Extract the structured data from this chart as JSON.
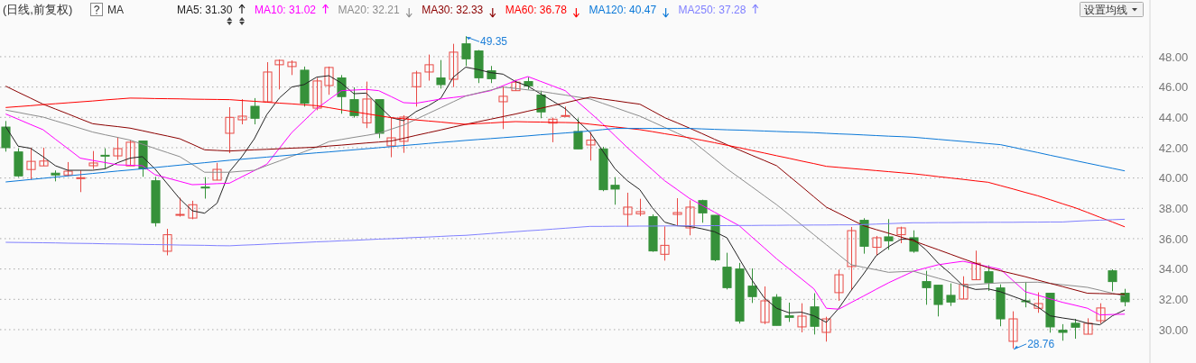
{
  "chart_data": {
    "type": "candlestick",
    "title": "(日线,前复权)",
    "legend_title": "MA",
    "legend": "top left",
    "grid": "y",
    "categories": [
      null,
      null,
      null,
      null,
      null,
      null,
      null,
      null,
      null,
      null,
      null,
      null,
      null,
      null,
      null,
      null,
      null,
      null,
      null,
      null,
      null,
      null,
      null,
      null,
      null,
      null,
      null,
      null,
      null,
      null,
      null,
      null,
      null,
      null,
      null,
      null,
      null,
      null,
      null,
      null,
      null,
      null,
      null,
      null,
      null,
      null,
      null,
      null,
      null,
      null,
      null,
      null,
      null,
      null,
      null,
      null,
      null,
      null,
      null,
      null,
      null,
      null,
      null,
      null,
      null,
      null,
      null,
      null,
      null,
      null,
      null,
      null,
      null,
      null,
      null,
      null,
      null,
      null,
      null,
      null,
      null,
      null,
      null,
      null,
      null,
      null,
      null,
      null,
      null,
      null,
      null
    ],
    "ylim": [
      27.8,
      51.74
    ],
    "yticks": [
      {
        "value": 30,
        "label": "30.00"
      },
      {
        "value": 32,
        "label": "32.00"
      },
      {
        "value": 34,
        "label": "34.00"
      },
      {
        "value": 36,
        "label": "36.00"
      },
      {
        "value": 38,
        "label": "38.00"
      },
      {
        "value": 40,
        "label": "40.00"
      },
      {
        "value": 42,
        "label": "42.00"
      },
      {
        "value": 44,
        "label": "44.00"
      },
      {
        "value": 46,
        "label": "46.00"
      },
      {
        "value": 48,
        "label": "48.00"
      }
    ],
    "annotations": [
      "设置均线",
      "49.35",
      "28.76"
    ],
    "series": [
      {
        "ohlc": [
          [
            43.36,
            43.76,
            41.74,
            42.0
          ],
          [
            41.72,
            41.96,
            40.06,
            40.14
          ],
          [
            40.56,
            42.0,
            39.9,
            41.1
          ],
          [
            40.8,
            42.0,
            40.8,
            41.12
          ],
          [
            40.32,
            40.5,
            39.78,
            40.2
          ],
          [
            40.2,
            41.05,
            40.1,
            40.45
          ],
          [
            40.0,
            40.5,
            39.07,
            40.02
          ],
          [
            40.81,
            41.78,
            40.6,
            40.99
          ],
          [
            41.5,
            41.96,
            40.6,
            41.44
          ],
          [
            41.46,
            42.7,
            41.2,
            41.94
          ],
          [
            40.8,
            42.5,
            40.8,
            42.36
          ],
          [
            42.44,
            42.44,
            40.08,
            40.6
          ],
          [
            39.82,
            40.08,
            36.8,
            37.05
          ],
          [
            35.17,
            36.65,
            34.9,
            36.26
          ],
          [
            37.56,
            38.7,
            37.45,
            37.6
          ],
          [
            37.36,
            38.5,
            37.28,
            38.24
          ],
          [
            39.4,
            40.06,
            38.64,
            39.36
          ],
          [
            39.86,
            41.0,
            39.86,
            40.57
          ],
          [
            42.95,
            44.67,
            41.64,
            44.0
          ],
          [
            43.84,
            45.2,
            43.54,
            44.08
          ],
          [
            44.73,
            45.27,
            43.54,
            43.94
          ],
          [
            45.03,
            47.64,
            45.03,
            46.99
          ],
          [
            47.47,
            47.82,
            45.84,
            47.76
          ],
          [
            47.35,
            47.76,
            46.79,
            47.64
          ],
          [
            47.11,
            47.35,
            44.71,
            44.93
          ],
          [
            44.61,
            46.6,
            44.47,
            46.4
          ],
          [
            46.1,
            47.35,
            45.49,
            47.29
          ],
          [
            46.6,
            46.79,
            44.24,
            45.37
          ],
          [
            45.17,
            45.98,
            43.98,
            44.12
          ],
          [
            43.64,
            46.36,
            43.29,
            45.21
          ],
          [
            45.17,
            45.17,
            42.63,
            42.95
          ],
          [
            42.12,
            43.98,
            41.37,
            42.65
          ],
          [
            42.42,
            44.14,
            41.66,
            44.02
          ],
          [
            46.02,
            47.07,
            44.71,
            46.93
          ],
          [
            46.99,
            48.14,
            46.42,
            47.47
          ],
          [
            46.6,
            47.78,
            45.9,
            46.16
          ],
          [
            46.51,
            48.85,
            46.0,
            48.3
          ],
          [
            48.85,
            49.35,
            47.39,
            47.86
          ],
          [
            48.38,
            48.44,
            46.26,
            46.61
          ],
          [
            47.07,
            47.39,
            46.26,
            46.55
          ],
          [
            45.03,
            46.06,
            43.23,
            45.39
          ],
          [
            45.76,
            46.48,
            45.76,
            46.32
          ],
          [
            46.36,
            46.65,
            45.84,
            46.08
          ],
          [
            45.47,
            45.76,
            43.94,
            44.36
          ],
          [
            43.62,
            43.98,
            42.36,
            43.88
          ],
          [
            44.06,
            44.71,
            44.06,
            44.12
          ],
          [
            43.07,
            43.94,
            41.92,
            41.92
          ],
          [
            42.18,
            43.03,
            41.15,
            42.5
          ],
          [
            41.92,
            42.06,
            39.13,
            39.23
          ],
          [
            39.52,
            40.06,
            38.24,
            39.27
          ],
          [
            37.6,
            39.03,
            36.79,
            38.08
          ],
          [
            37.64,
            38.63,
            37.49,
            37.78
          ],
          [
            37.45,
            37.6,
            35.13,
            35.19
          ],
          [
            34.97,
            36.81,
            34.55,
            35.56
          ],
          [
            37.6,
            38.67,
            36.85,
            37.72
          ],
          [
            36.71,
            38.53,
            36.22,
            38.08
          ],
          [
            38.51,
            38.57,
            37.05,
            37.7
          ],
          [
            37.54,
            37.54,
            34.51,
            34.61
          ],
          [
            34.12,
            35.07,
            32.65,
            32.77
          ],
          [
            34.0,
            34.4,
            30.4,
            30.57
          ],
          [
            32.87,
            34.04,
            31.76,
            32.18
          ],
          [
            30.48,
            32.85,
            30.36,
            31.9
          ],
          [
            32.14,
            32.34,
            30.28,
            30.28
          ],
          [
            30.91,
            31.78,
            30.51,
            30.81
          ],
          [
            30.18,
            31.74,
            29.82,
            30.89
          ],
          [
            31.5,
            32.4,
            29.68,
            30.22
          ],
          [
            29.82,
            30.85,
            29.21,
            30.71
          ],
          [
            32.44,
            33.96,
            31.9,
            33.62
          ],
          [
            34.16,
            36.77,
            32.59,
            36.53
          ],
          [
            37.21,
            37.35,
            35.01,
            35.5
          ],
          [
            35.43,
            36.18,
            34.87,
            36.06
          ],
          [
            36.12,
            37.29,
            35.27,
            35.86
          ],
          [
            36.26,
            36.79,
            35.7,
            36.71
          ],
          [
            36.06,
            36.55,
            35.07,
            35.17
          ],
          [
            33.17,
            33.88,
            31.64,
            32.77
          ],
          [
            32.93,
            32.93,
            30.87,
            31.66
          ],
          [
            32.26,
            33.05,
            31.56,
            31.82
          ],
          [
            32.02,
            33.52,
            32.02,
            32.99
          ],
          [
            33.29,
            35.21,
            33.29,
            34.38
          ],
          [
            33.82,
            34.24,
            32.55,
            33.09
          ],
          [
            32.75,
            32.99,
            30.22,
            30.71
          ],
          [
            29.23,
            31.21,
            28.76,
            30.71
          ],
          [
            31.9,
            33.15,
            31.47,
            31.84
          ],
          [
            31.41,
            32.46,
            31.11,
            31.72
          ],
          [
            32.4,
            32.4,
            29.8,
            30.18
          ],
          [
            29.96,
            30.36,
            29.27,
            29.82
          ],
          [
            30.42,
            30.71,
            29.4,
            30.16
          ],
          [
            29.7,
            30.75,
            29.7,
            30.42
          ],
          [
            30.59,
            31.74,
            30.4,
            31.43
          ],
          [
            33.88,
            33.98,
            32.53,
            33.17
          ],
          [
            32.4,
            32.69,
            31.54,
            31.84
          ]
        ],
        "colors": [
          "#36913a",
          "#36913a",
          "#e84a45",
          "#e84a45",
          "#36913a",
          "#e84a45",
          "#e84a45",
          "#e84a45",
          "#36913a",
          "#e84a45",
          "#e84a45",
          "#36913a",
          "#36913a",
          "#e84a45",
          "#e84a45",
          "#e84a45",
          "#36913a",
          "#e84a45",
          "#e84a45",
          "#e84a45",
          "#36913a",
          "#e84a45",
          "#e84a45",
          "#e84a45",
          "#36913a",
          "#e84a45",
          "#e84a45",
          "#36913a",
          "#36913a",
          "#e84a45",
          "#36913a",
          "#e84a45",
          "#e84a45",
          "#e84a45",
          "#e84a45",
          "#36913a",
          "#e84a45",
          "#36913a",
          "#36913a",
          "#36913a",
          "#e84a45",
          "#e84a45",
          "#36913a",
          "#36913a",
          "#e84a45",
          "#e84a45",
          "#36913a",
          "#e84a45",
          "#36913a",
          "#36913a",
          "#e84a45",
          "#e84a45",
          "#36913a",
          "#e84a45",
          "#e84a45",
          "#e84a45",
          "#36913a",
          "#36913a",
          "#36913a",
          "#36913a",
          "#36913a",
          "#e84a45",
          "#36913a",
          "#36913a",
          "#e84a45",
          "#36913a",
          "#e84a45",
          "#e84a45",
          "#e84a45",
          "#36913a",
          "#e84a45",
          "#36913a",
          "#e84a45",
          "#36913a",
          "#36913a",
          "#36913a",
          "#36913a",
          "#e84a45",
          "#e84a45",
          "#36913a",
          "#36913a",
          "#e84a45",
          "#36913a",
          "#e84a45",
          "#36913a",
          "#36913a",
          "#36913a",
          "#e84a45",
          "#e84a45",
          "#36913a",
          "#36913a"
        ]
      },
      {
        "type": "line",
        "name": "MA5: 31.30",
        "color": "#222222",
        "values": [
          43.39,
          42.1,
          41.96,
          41.41,
          40.81,
          40.51,
          40.51,
          40.51,
          40.61,
          41.01,
          41.31,
          41.41,
          40.61,
          39.62,
          38.63,
          37.84,
          37.68,
          38.34,
          40.42,
          41.41,
          42.59,
          44.18,
          45.27,
          46.0,
          46.16,
          46.65,
          46.75,
          46.26,
          45.56,
          45.6,
          44.77,
          43.98,
          43.78,
          44.38,
          44.77,
          45.27,
          46.65,
          47.31,
          47.15,
          46.95,
          46.85,
          46.36,
          46.06,
          45.56,
          45.07,
          44.57,
          43.78,
          42.99,
          41.8,
          40.61,
          39.82,
          39.23,
          38.04,
          37.09,
          36.85,
          36.81,
          36.65,
          36.46,
          36.06,
          34.67,
          33.29,
          32.1,
          31.41,
          31.11,
          31.15,
          30.91,
          30.48,
          31.41,
          32.59,
          33.68,
          34.87,
          35.47,
          35.96,
          35.96,
          35.27,
          34.38,
          33.68,
          32.89,
          32.65,
          32.69,
          32.5,
          32.2,
          31.9,
          31.5,
          30.91,
          30.77,
          30.65,
          30.42,
          30.32,
          30.91,
          31.3
        ]
      },
      {
        "type": "line",
        "name": "MA10: 31.02",
        "color": "#ff00ff",
        "values": [
          44.22,
          43.88,
          43.53,
          43.19,
          42.56,
          41.94,
          41.31,
          41.16,
          41.02,
          40.87,
          40.84,
          40.81,
          40.22,
          40.0,
          39.78,
          39.56,
          39.59,
          39.63,
          39.66,
          40.08,
          40.49,
          40.91,
          41.95,
          42.99,
          43.78,
          44.57,
          45.17,
          45.76,
          45.8,
          45.84,
          45.76,
          45.37,
          44.97,
          44.93,
          45.07,
          45.21,
          45.31,
          45.41,
          45.59,
          45.76,
          46.09,
          46.42,
          46.69,
          46.38,
          46.07,
          45.76,
          45.03,
          44.31,
          43.58,
          42.79,
          42.0,
          41.27,
          40.55,
          39.82,
          39.24,
          38.65,
          38.2,
          37.75,
          37.3,
          36.85,
          36.12,
          35.4,
          34.67,
          34.01,
          33.35,
          32.69,
          31.41,
          31.35,
          31.79,
          32.22,
          32.66,
          33.09,
          33.47,
          33.85,
          34.07,
          34.28,
          34.4,
          34.51,
          34.33,
          34.16,
          33.98,
          33.24,
          32.5,
          32.27,
          32.03,
          31.8,
          31.61,
          31.41,
          30.97,
          31.0,
          31.02
        ]
      },
      {
        "type": "line",
        "name": "MA20: 32.21",
        "color": "#8c8c8c",
        "values": [
          44.48,
          44.33,
          44.17,
          44.02,
          43.77,
          43.53,
          43.28,
          43.03,
          42.85,
          42.68,
          42.5,
          42.23,
          41.95,
          41.68,
          41.41,
          40.9,
          40.38,
          40.38,
          40.38,
          40.45,
          40.51,
          40.82,
          41.12,
          41.43,
          41.73,
          42.04,
          42.4,
          42.54,
          42.68,
          42.81,
          42.95,
          43.22,
          43.49,
          43.87,
          44.26,
          44.64,
          45.03,
          45.41,
          45.61,
          45.8,
          46.0,
          45.91,
          45.81,
          45.72,
          45.59,
          45.47,
          45.34,
          45.21,
          44.93,
          44.65,
          44.36,
          44.08,
          43.71,
          43.34,
          42.96,
          42.59,
          41.93,
          41.27,
          40.61,
          40.02,
          39.43,
          38.83,
          38.24,
          37.58,
          36.92,
          36.26,
          35.6,
          34.94,
          34.28,
          34.11,
          33.95,
          33.78,
          33.82,
          33.85,
          33.62,
          33.39,
          33.16,
          32.93,
          32.98,
          33.04,
          33.09,
          33.1,
          33.12,
          33.13,
          33.05,
          32.96,
          32.88,
          32.79,
          32.6,
          32.4,
          32.21
        ]
      },
      {
        "type": "line",
        "name": "MA30: 32.33",
        "color": "#8b0000",
        "values": [
          46.06,
          45.66,
          45.27,
          44.87,
          44.55,
          44.23,
          43.9,
          43.58,
          43.48,
          43.39,
          43.29,
          43.12,
          42.94,
          42.77,
          42.59,
          42.23,
          41.86,
          41.82,
          41.78,
          41.82,
          41.86,
          41.89,
          41.93,
          41.97,
          42.0,
          42.04,
          42.11,
          42.17,
          42.24,
          42.31,
          42.37,
          42.44,
          42.62,
          42.81,
          42.99,
          43.17,
          43.36,
          43.54,
          43.71,
          43.88,
          44.05,
          44.22,
          44.41,
          44.59,
          44.78,
          44.96,
          45.15,
          45.33,
          45.21,
          45.1,
          44.98,
          44.87,
          44.43,
          43.98,
          43.64,
          43.29,
          42.93,
          42.56,
          42.2,
          41.85,
          41.5,
          41.16,
          40.81,
          40.13,
          39.45,
          38.76,
          38.08,
          37.67,
          37.26,
          36.85,
          36.6,
          36.36,
          36.11,
          35.86,
          35.56,
          35.27,
          34.97,
          34.67,
          34.38,
          34.08,
          33.88,
          33.69,
          33.49,
          33.27,
          33.05,
          32.84,
          32.62,
          32.4,
          32.38,
          32.36,
          32.33
        ]
      },
      {
        "type": "line",
        "name": "MA60: 36.78",
        "color": "#ff0000",
        "values": [
          44.65,
          44.71,
          44.77,
          44.84,
          44.9,
          44.96,
          45.02,
          45.08,
          45.15,
          45.21,
          45.27,
          45.26,
          45.24,
          45.23,
          45.22,
          45.2,
          45.19,
          45.18,
          45.17,
          45.11,
          45.06,
          45.0,
          44.94,
          44.89,
          44.83,
          44.77,
          44.64,
          44.5,
          44.37,
          44.24,
          44.11,
          43.98,
          43.91,
          43.83,
          43.76,
          43.69,
          43.61,
          43.54,
          43.59,
          43.63,
          43.68,
          43.72,
          43.7,
          43.69,
          43.67,
          43.66,
          43.64,
          43.55,
          43.46,
          43.37,
          43.28,
          43.19,
          43.06,
          42.92,
          42.79,
          42.65,
          42.49,
          42.33,
          42.16,
          42.0,
          41.82,
          41.65,
          41.47,
          41.3,
          41.12,
          40.95,
          40.77,
          40.7,
          40.63,
          40.56,
          40.49,
          40.42,
          40.35,
          40.28,
          40.19,
          40.09,
          40.0,
          39.91,
          39.81,
          39.72,
          39.5,
          39.28,
          39.05,
          38.83,
          38.57,
          38.3,
          38.04,
          37.73,
          37.41,
          37.1,
          36.78
        ]
      },
      {
        "type": "line",
        "name": "MA120: 40.47",
        "color": "#0a78d8",
        "values": [
          39.74,
          39.82,
          39.9,
          39.98,
          40.06,
          40.14,
          40.22,
          40.3,
          40.38,
          40.46,
          40.53,
          40.61,
          40.69,
          40.77,
          40.85,
          40.93,
          41.01,
          41.09,
          41.17,
          41.24,
          41.31,
          41.38,
          41.45,
          41.52,
          41.59,
          41.66,
          41.72,
          41.79,
          41.86,
          41.93,
          42.0,
          42.07,
          42.14,
          42.21,
          42.28,
          42.35,
          42.41,
          42.48,
          42.54,
          42.6,
          42.66,
          42.72,
          42.78,
          42.85,
          42.91,
          42.97,
          43.03,
          43.11,
          43.19,
          43.27,
          43.27,
          43.27,
          43.27,
          43.27,
          43.27,
          43.27,
          43.24,
          43.21,
          43.18,
          43.16,
          43.13,
          43.1,
          43.07,
          43.04,
          43.02,
          42.99,
          42.95,
          42.91,
          42.88,
          42.84,
          42.8,
          42.76,
          42.73,
          42.69,
          42.62,
          42.55,
          42.48,
          42.41,
          42.34,
          42.27,
          42.2,
          42.03,
          41.85,
          41.68,
          41.5,
          41.33,
          41.15,
          40.98,
          40.81,
          40.64,
          40.47
        ]
      },
      {
        "type": "line",
        "name": "MA250: 37.28",
        "color": "#8080ff",
        "values": [
          35.76,
          35.75,
          35.74,
          35.73,
          35.72,
          35.7,
          35.69,
          35.68,
          35.66,
          35.65,
          35.64,
          35.62,
          35.61,
          35.6,
          35.58,
          35.57,
          35.56,
          35.54,
          35.53,
          35.57,
          35.6,
          35.64,
          35.68,
          35.71,
          35.75,
          35.79,
          35.82,
          35.86,
          35.89,
          35.93,
          35.97,
          36.0,
          36.04,
          36.08,
          36.11,
          36.15,
          36.19,
          36.22,
          36.28,
          36.34,
          36.4,
          36.46,
          36.52,
          36.57,
          36.63,
          36.69,
          36.75,
          36.81,
          36.81,
          36.82,
          36.82,
          36.83,
          36.83,
          36.84,
          36.84,
          36.85,
          36.85,
          36.86,
          36.86,
          36.87,
          36.87,
          36.88,
          36.88,
          36.89,
          36.89,
          36.9,
          36.9,
          36.91,
          36.91,
          36.93,
          36.96,
          36.99,
          37.02,
          37.05,
          37.05,
          37.06,
          37.06,
          37.07,
          37.07,
          37.08,
          37.08,
          37.08,
          37.09,
          37.09,
          37.1,
          37.1,
          37.15,
          37.19,
          37.22,
          37.25,
          37.28
        ]
      }
    ]
  }
}
